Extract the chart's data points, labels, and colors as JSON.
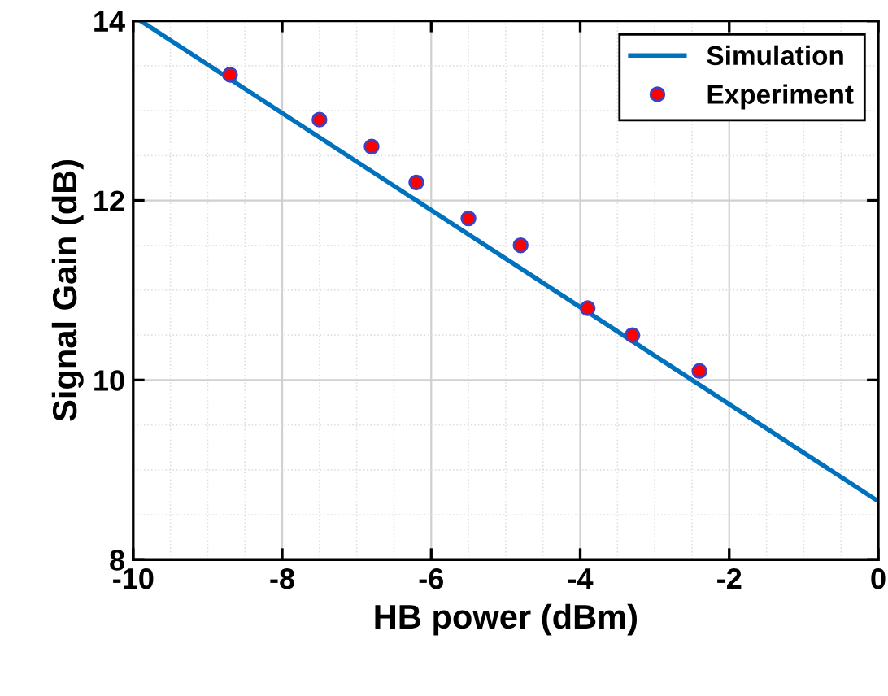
{
  "chart_data": {
    "type": "line",
    "xlabel": "HB power (dBm)",
    "ylabel": "Signal Gain (dB)",
    "xlim": [
      -10,
      0
    ],
    "ylim": [
      8,
      14
    ],
    "xticks": [
      -10,
      -8,
      -6,
      -4,
      -2,
      0
    ],
    "yticks": [
      8,
      10,
      12,
      14
    ],
    "grid": true,
    "legend": "top right",
    "series": [
      {
        "name": "Simulation",
        "color": "#0072bd",
        "x": [
          -9.9,
          0
        ],
        "values": [
          14.0,
          8.65
        ],
        "marker": "none",
        "line_style": "solid"
      },
      {
        "name": "Experiment",
        "type": "scatter",
        "color": "#ff0000",
        "x": [
          -8.7,
          -7.5,
          -6.8,
          -6.2,
          -5.5,
          -4.8,
          -3.9,
          -3.3,
          -2.4
        ],
        "values": [
          13.4,
          12.9,
          12.6,
          12.2,
          11.8,
          11.5,
          10.8,
          10.5,
          10.1
        ],
        "marker": "circle"
      }
    ]
  }
}
